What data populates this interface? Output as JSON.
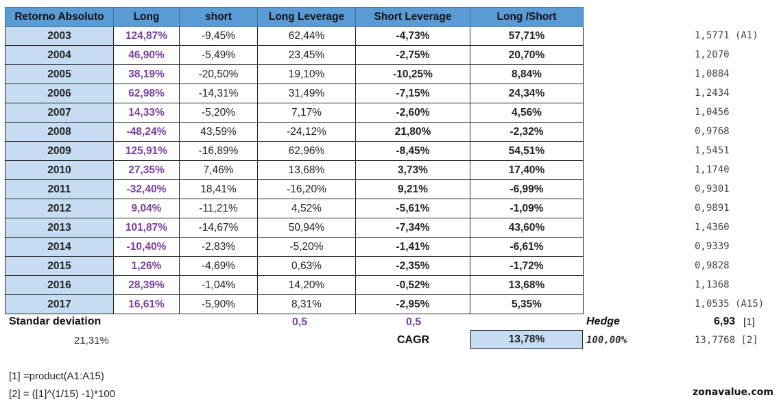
{
  "table": {
    "headers": [
      "Retorno Absoluto",
      "Long",
      "short",
      "Long Leverage",
      "Short Leverage",
      "Long /Short"
    ],
    "rows": [
      {
        "year": "2003",
        "long": "124,87%",
        "short": "-9,45%",
        "long_leverage": "62,44%",
        "short_leverage": "-4,73%",
        "long_short": "57,71%",
        "product": "1,5771 (A1)"
      },
      {
        "year": "2004",
        "long": "46,90%",
        "short": "-5,49%",
        "long_leverage": "23,45%",
        "short_leverage": "-2,75%",
        "long_short": "20,70%",
        "product": "1,2070"
      },
      {
        "year": "2005",
        "long": "38,19%",
        "short": "-20,50%",
        "long_leverage": "19,10%",
        "short_leverage": "-10,25%",
        "long_short": "8,84%",
        "product": "1,0884"
      },
      {
        "year": "2006",
        "long": "62,98%",
        "short": "-14,31%",
        "long_leverage": "31,49%",
        "short_leverage": "-7,15%",
        "long_short": "24,34%",
        "product": "1,2434"
      },
      {
        "year": "2007",
        "long": "14,33%",
        "short": "-5,20%",
        "long_leverage": "7,17%",
        "short_leverage": "-2,60%",
        "long_short": "4,56%",
        "product": "1,0456"
      },
      {
        "year": "2008",
        "long": "-48,24%",
        "short": "43,59%",
        "long_leverage": "-24,12%",
        "short_leverage": "21,80%",
        "long_short": "-2,32%",
        "product": "0,9768"
      },
      {
        "year": "2009",
        "long": "125,91%",
        "short": "-16,89%",
        "long_leverage": "62,96%",
        "short_leverage": "-8,45%",
        "long_short": "54,51%",
        "product": "1,5451"
      },
      {
        "year": "2010",
        "long": "27,35%",
        "short": "7,46%",
        "long_leverage": "13,68%",
        "short_leverage": "3,73%",
        "long_short": "17,40%",
        "product": "1,1740"
      },
      {
        "year": "2011",
        "long": "-32,40%",
        "short": "18,41%",
        "long_leverage": "-16,20%",
        "short_leverage": "9,21%",
        "long_short": "-6,99%",
        "product": "0,9301"
      },
      {
        "year": "2012",
        "long": "9,04%",
        "short": "-11,21%",
        "long_leverage": "4,52%",
        "short_leverage": "-5,61%",
        "long_short": "-1,09%",
        "product": "0,9891"
      },
      {
        "year": "2013",
        "long": "101,87%",
        "short": "-14,67%",
        "long_leverage": "50,94%",
        "short_leverage": "-7,34%",
        "long_short": "43,60%",
        "product": "1,4360"
      },
      {
        "year": "2014",
        "long": "-10,40%",
        "short": "-2,83%",
        "long_leverage": "-5,20%",
        "short_leverage": "-1,41%",
        "long_short": "-6,61%",
        "product": "0,9339"
      },
      {
        "year": "2015",
        "long": "1,26%",
        "short": "-4,69%",
        "long_leverage": "0,63%",
        "short_leverage": "-2,35%",
        "long_short": "-1,72%",
        "product": "0,9828"
      },
      {
        "year": "2016",
        "long": "28,39%",
        "short": "-1,04%",
        "long_leverage": "14,20%",
        "short_leverage": "-0,52%",
        "long_short": "13,68%",
        "product": "1,1368"
      },
      {
        "year": "2017",
        "long": "16,61%",
        "short": "-5,90%",
        "long_leverage": "8,31%",
        "short_leverage": "-2,95%",
        "long_short": "5,35%",
        "product": "1,0535 (A15)"
      }
    ]
  },
  "summary": {
    "std_label": "Standar deviation",
    "std_value": "21,31%",
    "long_leverage_weight": "0,5",
    "short_leverage_weight": "0,5",
    "hedge_label": "Hedge",
    "hedge_value": "6,93",
    "hedge_ref": "[1]",
    "cagr_label": "CAGR",
    "cagr_value": "13,78%",
    "cagr_percent": "100,00%",
    "cagr_product": "13,7768 [2]"
  },
  "notes": {
    "note1": "[1] =product(A1:A15)",
    "note2": "[2] = ([1]^(1/15) -1)*100"
  },
  "brand": "zonavalue.com"
}
